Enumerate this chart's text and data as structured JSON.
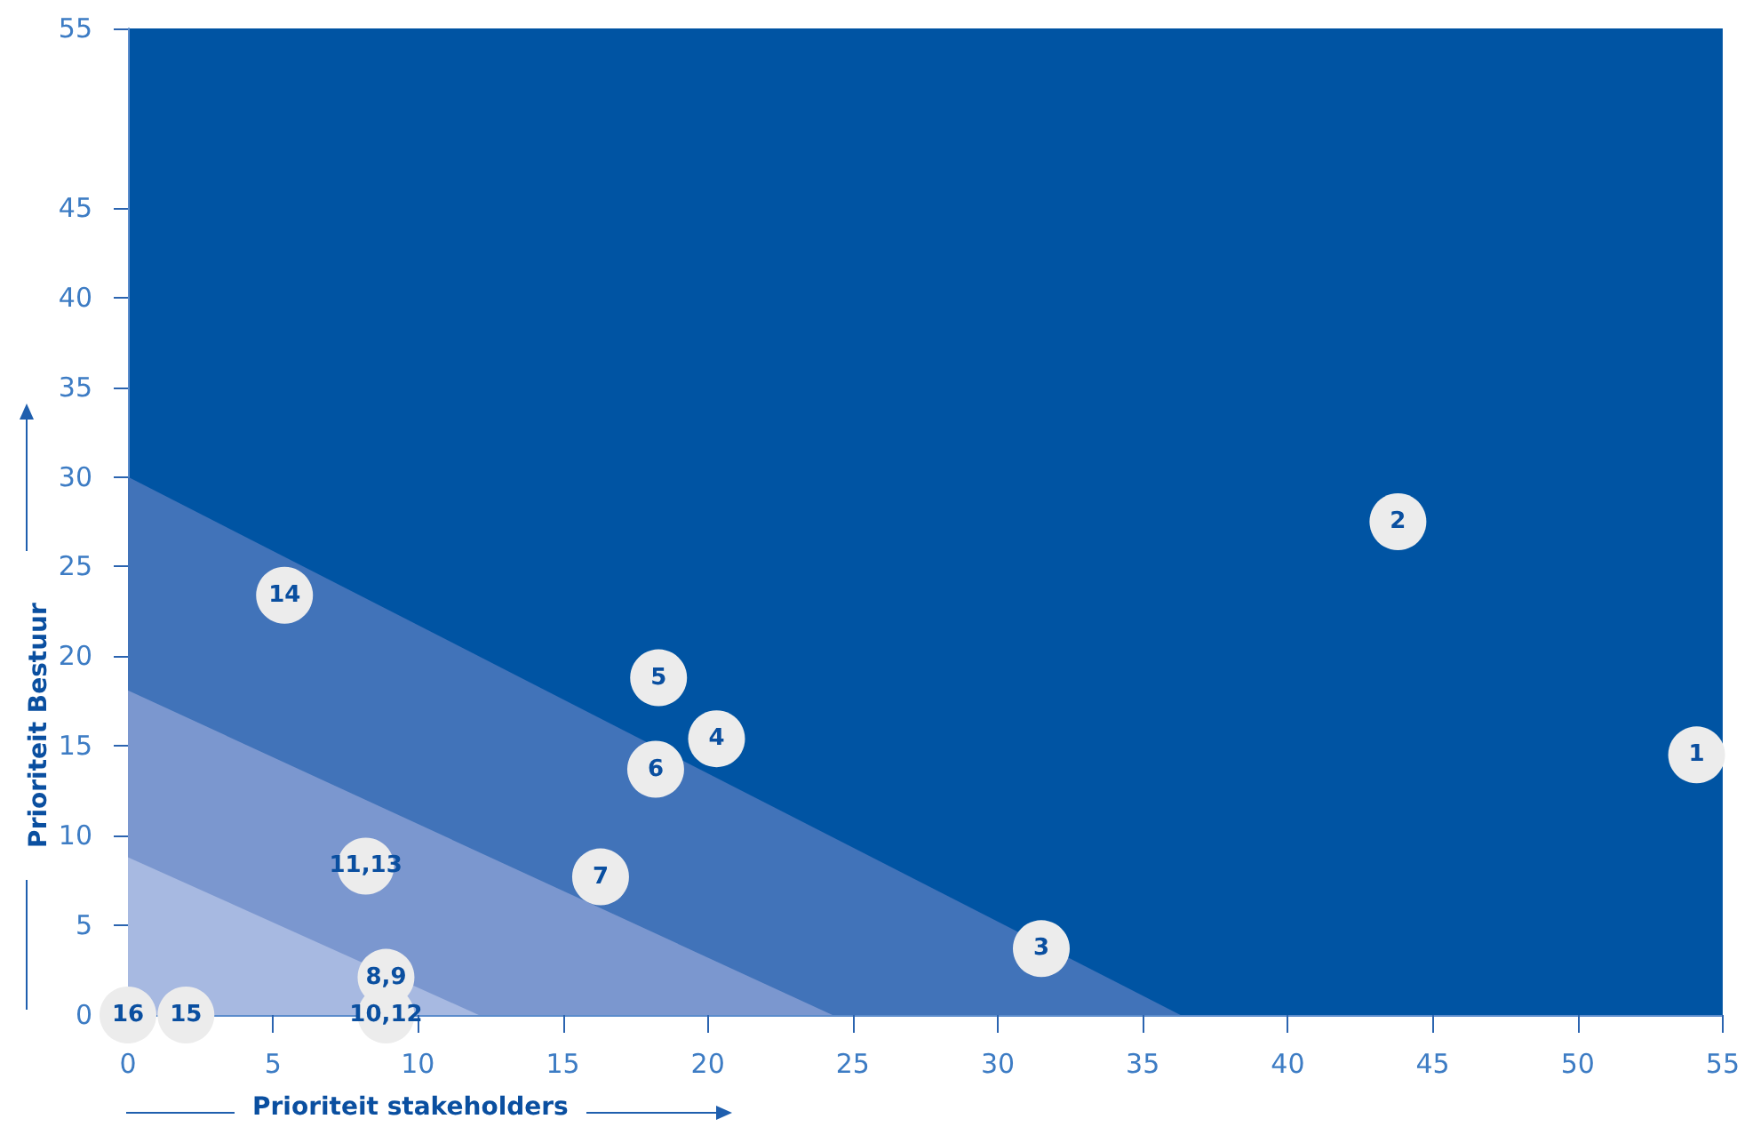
{
  "chart_data": {
    "type": "scatter",
    "xlabel": "Prioriteit stakeholders",
    "ylabel": "Prioriteit Bestuur",
    "xlim": [
      0,
      55
    ],
    "ylim": [
      0,
      55
    ],
    "xticks": [
      0,
      5,
      10,
      15,
      20,
      25,
      30,
      35,
      40,
      45,
      50,
      55
    ],
    "yticks": [
      0,
      5,
      10,
      15,
      20,
      25,
      30,
      35,
      40,
      45,
      55
    ],
    "series": [
      {
        "type": "area",
        "marker": "none",
        "color": "#4173b9",
        "x": [
          0,
          36.3
        ],
        "values": [
          30,
          0
        ]
      },
      {
        "type": "area",
        "marker": "none",
        "color": "#7b97cf",
        "x": [
          0,
          24.3
        ],
        "values": [
          18.1,
          0
        ]
      },
      {
        "type": "area",
        "marker": "none",
        "color": "#a7b9e1",
        "x": [
          0,
          12.1
        ],
        "values": [
          8.8,
          0
        ]
      },
      {
        "marker": "circle",
        "color": "#ececec",
        "x": [
          54.1,
          43.8,
          31.5,
          20.3,
          18.3,
          18.2,
          16.3,
          8.9,
          8.9,
          8.2,
          5.4,
          2.0,
          0
        ],
        "values": [
          14.5,
          27.5,
          3.7,
          15.4,
          18.8,
          13.7,
          7.7,
          2.1,
          0,
          8.3,
          23.4,
          0,
          0
        ]
      }
    ],
    "annotations": [
      {
        "text": "1",
        "x": 54.1,
        "y": 14.5
      },
      {
        "text": "2",
        "x": 43.8,
        "y": 27.5
      },
      {
        "text": "3",
        "x": 31.5,
        "y": 3.7
      },
      {
        "text": "4",
        "x": 20.3,
        "y": 15.4
      },
      {
        "text": "5",
        "x": 18.3,
        "y": 18.8
      },
      {
        "text": "6",
        "x": 18.2,
        "y": 13.7
      },
      {
        "text": "7",
        "x": 16.3,
        "y": 7.7
      },
      {
        "text": "8,9",
        "x": 8.9,
        "y": 2.1
      },
      {
        "text": "10,12",
        "x": 8.9,
        "y": 0
      },
      {
        "text": "11,13",
        "x": 8.2,
        "y": 8.3
      },
      {
        "text": "14",
        "x": 5.4,
        "y": 23.4
      },
      {
        "text": "15",
        "x": 2.0,
        "y": 0
      },
      {
        "text": "16",
        "x": 0,
        "y": 0
      }
    ]
  }
}
